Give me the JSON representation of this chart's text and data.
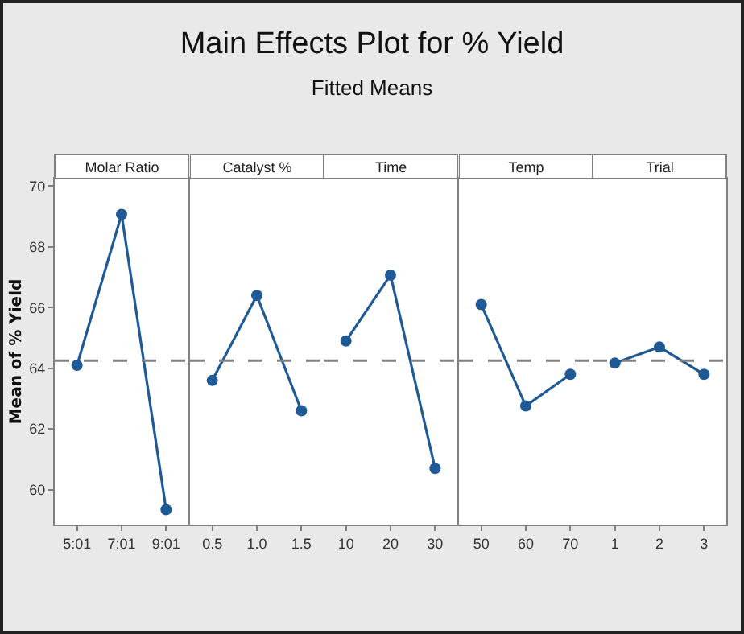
{
  "chart_data": [
    {
      "type": "other",
      "title": "Main Effects Plot for % Yield",
      "subtitle": "Fitted Means"
    },
    {
      "type": "line",
      "title": "Molar Ratio",
      "ylabel": "Mean of % Yield",
      "categories": [
        "5:01",
        "7:01",
        "9:01"
      ],
      "series": [
        {
          "color": "#1f5a96",
          "values": [
            64.1,
            69.07,
            59.34
          ]
        }
      ],
      "ylim": [
        58.85,
        70.25
      ],
      "yticks": [
        60,
        62,
        64,
        66,
        68,
        70
      ],
      "ref_lines": [
        {
          "axis": "y",
          "value": 64.25,
          "color": "#808080",
          "line_style": "dashed"
        }
      ],
      "grid": false,
      "marker": "circle",
      "line_style": "solid"
    },
    {
      "type": "line",
      "title": "Catalyst %",
      "categories": [
        "0.5",
        "1.0",
        "1.5"
      ],
      "series": [
        {
          "color": "#1f5a96",
          "values": [
            63.6,
            66.4,
            62.6
          ]
        }
      ],
      "ylim": [
        58.85,
        70.25
      ],
      "yticks": [
        60,
        62,
        64,
        66,
        68,
        70
      ],
      "tick_labels": "x",
      "ref_lines": [
        {
          "axis": "y",
          "value": 64.25,
          "color": "#808080",
          "line_style": "dashed"
        }
      ],
      "grid": false,
      "marker": "circle",
      "line_style": "solid"
    },
    {
      "type": "line",
      "title": "Time",
      "categories": [
        "10",
        "20",
        "30"
      ],
      "series": [
        {
          "color": "#1f5a96",
          "values": [
            64.9,
            67.07,
            60.7
          ]
        }
      ],
      "ylim": [
        58.85,
        70.25
      ],
      "yticks": [
        60,
        62,
        64,
        66,
        68,
        70
      ],
      "tick_labels": "x",
      "ref_lines": [
        {
          "axis": "y",
          "value": 64.25,
          "color": "#808080",
          "line_style": "dashed"
        }
      ],
      "grid": false,
      "marker": "circle",
      "line_style": "solid"
    },
    {
      "type": "line",
      "title": "Temp",
      "categories": [
        "50",
        "60",
        "70"
      ],
      "series": [
        {
          "color": "#1f5a96",
          "values": [
            66.1,
            62.76,
            63.8
          ]
        }
      ],
      "ylim": [
        58.85,
        70.25
      ],
      "yticks": [
        60,
        62,
        64,
        66,
        68,
        70
      ],
      "tick_labels": "x",
      "ref_lines": [
        {
          "axis": "y",
          "value": 64.25,
          "color": "#808080",
          "line_style": "dashed"
        }
      ],
      "grid": false,
      "marker": "circle",
      "line_style": "solid"
    },
    {
      "type": "line",
      "title": "Trial",
      "categories": [
        "1",
        "2",
        "3"
      ],
      "series": [
        {
          "color": "#1f5a96",
          "values": [
            64.17,
            64.7,
            63.8
          ]
        }
      ],
      "ylim": [
        58.85,
        70.25
      ],
      "yticks": [
        60,
        62,
        64,
        66,
        68,
        70
      ],
      "tick_labels": "x",
      "ref_lines": [
        {
          "axis": "y",
          "value": 64.25,
          "color": "#808080",
          "line_style": "dashed"
        }
      ],
      "grid": false,
      "marker": "circle",
      "line_style": "solid"
    }
  ]
}
